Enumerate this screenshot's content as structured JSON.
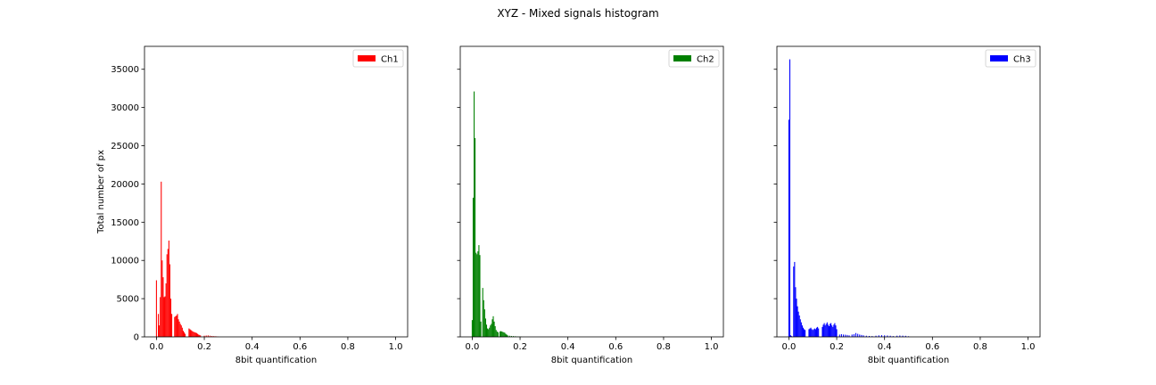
{
  "figure": {
    "title": "XYZ - Mixed signals histogram"
  },
  "chart_data": [
    {
      "type": "bar",
      "subtype": "histogram",
      "series": [
        {
          "name": "Ch1",
          "color": "#ff0000"
        }
      ],
      "xlabel": "8bit quantification",
      "ylabel": "Total number of px",
      "xlim": [
        -0.05,
        1.05
      ],
      "ylim": [
        0,
        38000
      ],
      "xticks": [
        0.0,
        0.2,
        0.4,
        0.6,
        0.8,
        1.0
      ],
      "xtick_labels": [
        "0.0",
        "0.2",
        "0.4",
        "0.6",
        "0.8",
        "1.0"
      ],
      "yticks": [
        0,
        5000,
        10000,
        15000,
        20000,
        25000,
        30000,
        35000
      ],
      "ytick_labels": [
        "0",
        "5000",
        "10000",
        "15000",
        "20000",
        "25000",
        "30000",
        "35000"
      ],
      "show_ytick_labels": true,
      "grid": false,
      "legend_position": "top-right",
      "bins": [
        [
          -0.002,
          7400
        ],
        [
          0.006,
          3000
        ],
        [
          0.01,
          1500
        ],
        [
          0.014,
          5200
        ],
        [
          0.018,
          20300
        ],
        [
          0.022,
          10000
        ],
        [
          0.026,
          7800
        ],
        [
          0.03,
          5200
        ],
        [
          0.034,
          5300
        ],
        [
          0.038,
          7000
        ],
        [
          0.042,
          10800
        ],
        [
          0.046,
          11500
        ],
        [
          0.05,
          12600
        ],
        [
          0.054,
          9500
        ],
        [
          0.058,
          5000
        ],
        [
          0.062,
          3000
        ],
        [
          0.074,
          2600
        ],
        [
          0.078,
          2700
        ],
        [
          0.082,
          2800
        ],
        [
          0.086,
          3000
        ],
        [
          0.09,
          2300
        ],
        [
          0.094,
          2000
        ],
        [
          0.098,
          1700
        ],
        [
          0.102,
          1500
        ],
        [
          0.106,
          1200
        ],
        [
          0.11,
          800
        ],
        [
          0.114,
          600
        ],
        [
          0.118,
          400
        ],
        [
          0.134,
          1100
        ],
        [
          0.138,
          1000
        ],
        [
          0.142,
          900
        ],
        [
          0.146,
          800
        ],
        [
          0.15,
          700
        ],
        [
          0.154,
          650
        ],
        [
          0.158,
          600
        ],
        [
          0.162,
          550
        ],
        [
          0.166,
          500
        ],
        [
          0.17,
          400
        ],
        [
          0.174,
          300
        ],
        [
          0.178,
          250
        ],
        [
          0.182,
          200
        ],
        [
          0.198,
          150
        ],
        [
          0.206,
          180
        ],
        [
          0.214,
          200
        ],
        [
          0.222,
          150
        ],
        [
          0.23,
          120
        ],
        [
          0.238,
          100
        ],
        [
          0.246,
          80
        ],
        [
          0.254,
          50
        ]
      ]
    },
    {
      "type": "bar",
      "subtype": "histogram",
      "series": [
        {
          "name": "Ch2",
          "color": "#008000"
        }
      ],
      "xlabel": "8bit quantification",
      "ylabel": "",
      "xlim": [
        -0.05,
        1.05
      ],
      "ylim": [
        0,
        38000
      ],
      "xticks": [
        0.0,
        0.2,
        0.4,
        0.6,
        0.8,
        1.0
      ],
      "xtick_labels": [
        "0.0",
        "0.2",
        "0.4",
        "0.6",
        "0.8",
        "1.0"
      ],
      "yticks": [
        0,
        5000,
        10000,
        15000,
        20000,
        25000,
        30000,
        35000
      ],
      "ytick_labels": [],
      "show_ytick_labels": false,
      "grid": false,
      "legend_position": "top-right",
      "bins": [
        [
          -0.002,
          2200
        ],
        [
          0.002,
          18200
        ],
        [
          0.006,
          32100
        ],
        [
          0.01,
          26000
        ],
        [
          0.014,
          11000
        ],
        [
          0.018,
          10800
        ],
        [
          0.022,
          11200
        ],
        [
          0.026,
          12000
        ],
        [
          0.03,
          10700
        ],
        [
          0.034,
          2000
        ],
        [
          0.042,
          6400
        ],
        [
          0.046,
          4800
        ],
        [
          0.05,
          3600
        ],
        [
          0.054,
          2400
        ],
        [
          0.058,
          1600
        ],
        [
          0.062,
          1100
        ],
        [
          0.066,
          1000
        ],
        [
          0.07,
          1200
        ],
        [
          0.074,
          1500
        ],
        [
          0.078,
          1700
        ],
        [
          0.082,
          2300
        ],
        [
          0.086,
          2700
        ],
        [
          0.09,
          2000
        ],
        [
          0.094,
          1400
        ],
        [
          0.098,
          900
        ],
        [
          0.102,
          700
        ],
        [
          0.106,
          600
        ],
        [
          0.114,
          700
        ],
        [
          0.118,
          750
        ],
        [
          0.122,
          700
        ],
        [
          0.126,
          650
        ],
        [
          0.13,
          600
        ],
        [
          0.134,
          550
        ],
        [
          0.138,
          400
        ],
        [
          0.142,
          300
        ],
        [
          0.146,
          200
        ],
        [
          0.154,
          150
        ],
        [
          0.162,
          120
        ],
        [
          0.17,
          100
        ],
        [
          0.178,
          80
        ],
        [
          0.186,
          60
        ],
        [
          0.194,
          50
        ],
        [
          0.202,
          40
        ]
      ]
    },
    {
      "type": "bar",
      "subtype": "histogram",
      "series": [
        {
          "name": "Ch3",
          "color": "#0000ff"
        }
      ],
      "xlabel": "8bit quantification",
      "ylabel": "",
      "xlim": [
        -0.05,
        1.05
      ],
      "ylim": [
        0,
        38000
      ],
      "xticks": [
        0.0,
        0.2,
        0.4,
        0.6,
        0.8,
        1.0
      ],
      "xtick_labels": [
        "0.0",
        "0.2",
        "0.4",
        "0.6",
        "0.8",
        "1.0"
      ],
      "yticks": [
        0,
        5000,
        10000,
        15000,
        20000,
        25000,
        30000,
        35000
      ],
      "ytick_labels": [],
      "show_ytick_labels": false,
      "grid": false,
      "legend_position": "top-right",
      "bins": [
        [
          -0.002,
          28400
        ],
        [
          0.002,
          36300
        ],
        [
          0.006,
          200
        ],
        [
          0.01,
          100
        ],
        [
          0.018,
          9200
        ],
        [
          0.022,
          9800
        ],
        [
          0.026,
          6500
        ],
        [
          0.03,
          5000
        ],
        [
          0.034,
          4000
        ],
        [
          0.038,
          3300
        ],
        [
          0.042,
          2800
        ],
        [
          0.046,
          2300
        ],
        [
          0.05,
          1900
        ],
        [
          0.054,
          1500
        ],
        [
          0.058,
          1200
        ],
        [
          0.062,
          1000
        ],
        [
          0.066,
          900
        ],
        [
          0.082,
          1000
        ],
        [
          0.086,
          1100
        ],
        [
          0.09,
          1200
        ],
        [
          0.094,
          1000
        ],
        [
          0.098,
          900
        ],
        [
          0.102,
          1000
        ],
        [
          0.106,
          1100
        ],
        [
          0.11,
          1000
        ],
        [
          0.114,
          1200
        ],
        [
          0.118,
          1300
        ],
        [
          0.122,
          1100
        ],
        [
          0.138,
          1300
        ],
        [
          0.142,
          1600
        ],
        [
          0.146,
          1800
        ],
        [
          0.15,
          1500
        ],
        [
          0.154,
          1700
        ],
        [
          0.158,
          1900
        ],
        [
          0.162,
          1600
        ],
        [
          0.166,
          1400
        ],
        [
          0.17,
          1700
        ],
        [
          0.174,
          1800
        ],
        [
          0.178,
          1500
        ],
        [
          0.182,
          1300
        ],
        [
          0.186,
          1600
        ],
        [
          0.19,
          1800
        ],
        [
          0.194,
          1500
        ],
        [
          0.198,
          1000
        ],
        [
          0.21,
          300
        ],
        [
          0.218,
          350
        ],
        [
          0.226,
          300
        ],
        [
          0.234,
          280
        ],
        [
          0.242,
          250
        ],
        [
          0.25,
          200
        ],
        [
          0.262,
          300
        ],
        [
          0.27,
          350
        ],
        [
          0.278,
          500
        ],
        [
          0.286,
          400
        ],
        [
          0.294,
          300
        ],
        [
          0.302,
          250
        ],
        [
          0.31,
          200
        ],
        [
          0.322,
          150
        ],
        [
          0.334,
          120
        ],
        [
          0.346,
          100
        ],
        [
          0.362,
          150
        ],
        [
          0.374,
          200
        ],
        [
          0.386,
          220
        ],
        [
          0.398,
          200
        ],
        [
          0.41,
          180
        ],
        [
          0.422,
          150
        ],
        [
          0.434,
          100
        ],
        [
          0.45,
          150
        ],
        [
          0.462,
          180
        ],
        [
          0.474,
          160
        ],
        [
          0.486,
          140
        ],
        [
          0.498,
          80
        ]
      ]
    }
  ]
}
